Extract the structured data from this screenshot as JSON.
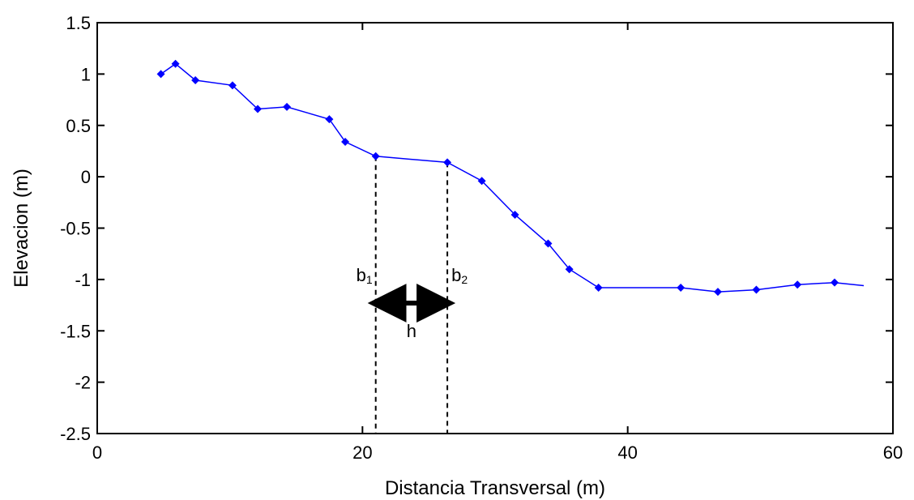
{
  "chart_data": {
    "type": "line",
    "title": "",
    "xlabel": "Distancia Transversal (m)",
    "ylabel": "Elevacion (m)",
    "xlim": [
      0,
      60
    ],
    "ylim": [
      -2.5,
      1.5
    ],
    "xticks": [
      0,
      20,
      40,
      60
    ],
    "xtick_labels": [
      "0",
      "20",
      "40",
      "60"
    ],
    "yticks": [
      1.5,
      1,
      0.5,
      0,
      -0.5,
      -1,
      -1.5,
      -2,
      -2.5
    ],
    "ytick_labels": [
      "1.5",
      "1",
      "0.5",
      "0",
      "-0.5",
      "-1",
      "-1.5",
      "-2",
      "-2.5"
    ],
    "grid": false,
    "series": [
      {
        "color": "#0000ff",
        "marker": "diamond",
        "points": [
          {
            "x": 4.8,
            "y": 1.0
          },
          {
            "x": 5.9,
            "y": 1.1
          },
          {
            "x": 7.4,
            "y": 0.94
          },
          {
            "x": 10.2,
            "y": 0.89
          },
          {
            "x": 12.1,
            "y": 0.66
          },
          {
            "x": 14.3,
            "y": 0.68
          },
          {
            "x": 17.5,
            "y": 0.56
          },
          {
            "x": 18.7,
            "y": 0.34
          },
          {
            "x": 21.0,
            "y": 0.2
          },
          {
            "x": 26.4,
            "y": 0.14
          },
          {
            "x": 29.0,
            "y": -0.04
          },
          {
            "x": 31.5,
            "y": -0.37
          },
          {
            "x": 34.0,
            "y": -0.65
          },
          {
            "x": 35.6,
            "y": -0.9
          },
          {
            "x": 37.8,
            "y": -1.08
          },
          {
            "x": 44.0,
            "y": -1.08
          },
          {
            "x": 46.8,
            "y": -1.12
          },
          {
            "x": 49.7,
            "y": -1.1
          },
          {
            "x": 52.8,
            "y": -1.05
          },
          {
            "x": 55.6,
            "y": -1.03
          },
          {
            "x": 57.8,
            "y": -1.06,
            "no_marker": true
          }
        ]
      }
    ],
    "annotations": {
      "b1": {
        "main": "b",
        "sub": "1",
        "x": 21.0
      },
      "b2": {
        "main": "b",
        "sub": "2",
        "x": 26.4
      },
      "h": {
        "label": "h",
        "y": -1.23
      },
      "label_y": -1.0,
      "dashed_from_y": -2.5
    }
  }
}
